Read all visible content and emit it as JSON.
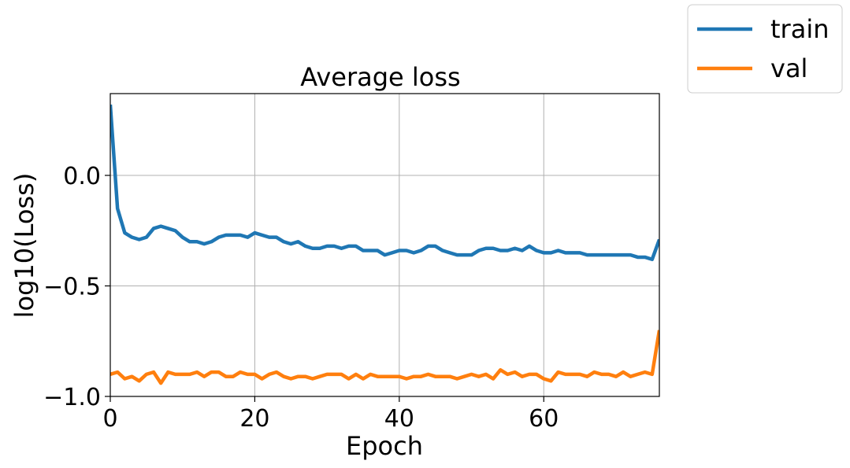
{
  "chart_data": {
    "type": "line",
    "title": "Average loss",
    "xlabel": "Epoch",
    "ylabel": "log10(Loss)",
    "xlim": [
      0,
      76
    ],
    "ylim": [
      -1.0,
      0.37
    ],
    "xticks": [
      0,
      20,
      40,
      60
    ],
    "xtick_labels": [
      "0",
      "20",
      "40",
      "60"
    ],
    "yticks": [
      0.0,
      -0.5,
      -1.0
    ],
    "ytick_labels": [
      "0.0",
      "−0.5",
      "−1.0"
    ],
    "grid": true,
    "legend_position": "outside-top-right",
    "series": [
      {
        "name": "train",
        "color": "#1f77b4",
        "values": [
          0.32,
          -0.15,
          -0.26,
          -0.28,
          -0.29,
          -0.28,
          -0.24,
          -0.23,
          -0.24,
          -0.25,
          -0.28,
          -0.3,
          -0.3,
          -0.31,
          -0.3,
          -0.28,
          -0.27,
          -0.27,
          -0.27,
          -0.28,
          -0.26,
          -0.27,
          -0.28,
          -0.28,
          -0.3,
          -0.31,
          -0.3,
          -0.32,
          -0.33,
          -0.33,
          -0.32,
          -0.32,
          -0.33,
          -0.32,
          -0.32,
          -0.34,
          -0.34,
          -0.34,
          -0.36,
          -0.35,
          -0.34,
          -0.34,
          -0.35,
          -0.34,
          -0.32,
          -0.32,
          -0.34,
          -0.35,
          -0.36,
          -0.36,
          -0.36,
          -0.34,
          -0.33,
          -0.33,
          -0.34,
          -0.34,
          -0.33,
          -0.34,
          -0.32,
          -0.34,
          -0.35,
          -0.35,
          -0.34,
          -0.35,
          -0.35,
          -0.35,
          -0.36,
          -0.36,
          -0.36,
          -0.36,
          -0.36,
          -0.36,
          -0.36,
          -0.37,
          -0.37,
          -0.38,
          -0.29
        ]
      },
      {
        "name": "val",
        "color": "#ff7f0e",
        "values": [
          -0.9,
          -0.89,
          -0.92,
          -0.91,
          -0.93,
          -0.9,
          -0.89,
          -0.94,
          -0.89,
          -0.9,
          -0.9,
          -0.9,
          -0.89,
          -0.91,
          -0.89,
          -0.89,
          -0.91,
          -0.91,
          -0.89,
          -0.9,
          -0.9,
          -0.92,
          -0.9,
          -0.89,
          -0.91,
          -0.92,
          -0.91,
          -0.91,
          -0.92,
          -0.91,
          -0.9,
          -0.9,
          -0.9,
          -0.92,
          -0.9,
          -0.92,
          -0.9,
          -0.91,
          -0.91,
          -0.91,
          -0.91,
          -0.92,
          -0.91,
          -0.91,
          -0.9,
          -0.91,
          -0.91,
          -0.91,
          -0.92,
          -0.91,
          -0.9,
          -0.91,
          -0.9,
          -0.92,
          -0.88,
          -0.9,
          -0.89,
          -0.91,
          -0.9,
          -0.9,
          -0.92,
          -0.93,
          -0.89,
          -0.9,
          -0.9,
          -0.9,
          -0.91,
          -0.89,
          -0.9,
          -0.9,
          -0.91,
          -0.89,
          -0.91,
          -0.9,
          -0.89,
          -0.9,
          -0.7
        ]
      }
    ]
  }
}
